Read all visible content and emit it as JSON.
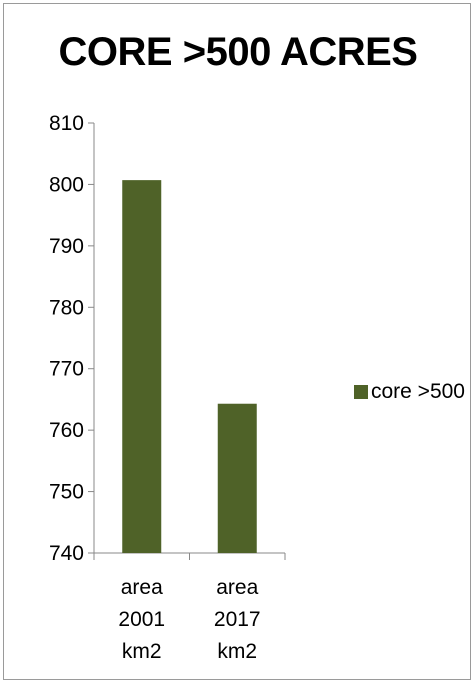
{
  "chart_data": {
    "type": "bar",
    "title": "CORE >500 ACRES",
    "categories": [
      [
        "area",
        "2001",
        "km2"
      ],
      [
        "area",
        "2017",
        "km2"
      ]
    ],
    "series": [
      {
        "name": "core >500",
        "values": [
          800.7,
          764.3
        ]
      }
    ],
    "ylim": [
      740,
      810
    ],
    "yticks": [
      740,
      750,
      760,
      770,
      780,
      790,
      800,
      810
    ],
    "xlabel": "",
    "ylabel": "",
    "grid": false,
    "legend": "right",
    "bar_color": "#4f6228"
  }
}
